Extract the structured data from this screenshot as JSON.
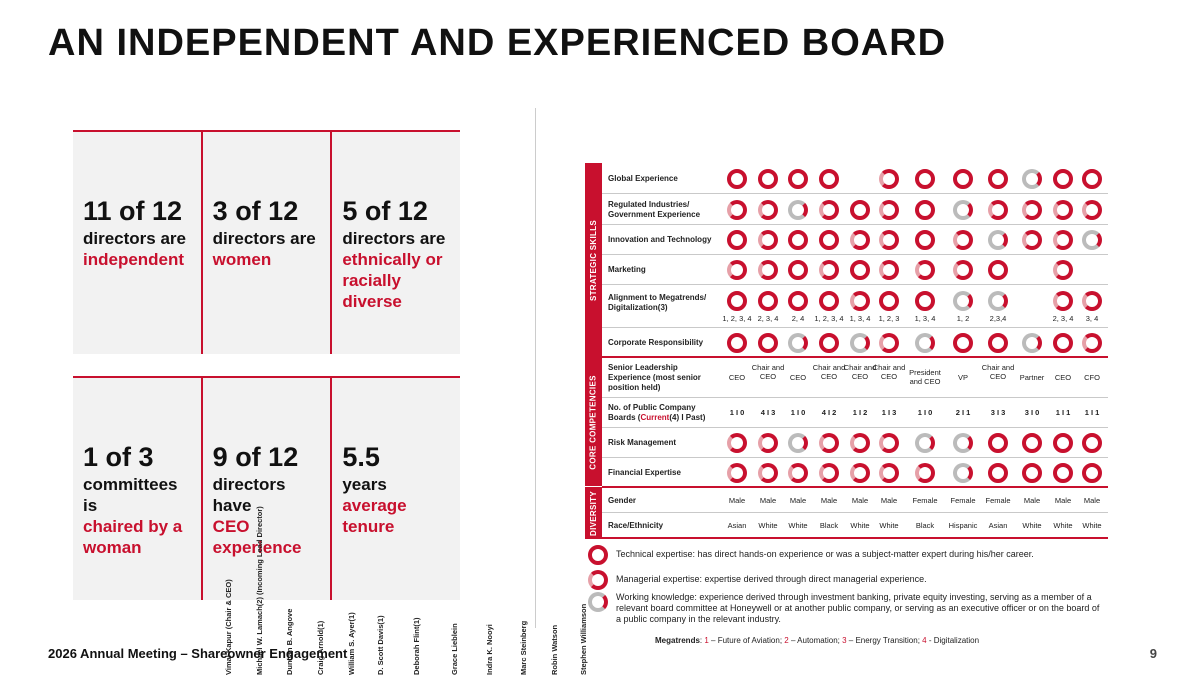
{
  "title": "AN INDEPENDENT AND EXPERIENCED BOARD",
  "cards_top": [
    {
      "big": "11 of 12",
      "text": "directors are",
      "highlight": "independent"
    },
    {
      "big": "3 of 12",
      "text": "directors are",
      "highlight": "women"
    },
    {
      "big": "5 of 12",
      "text": "directors are",
      "highlight": "ethnically or racially diverse"
    }
  ],
  "cards_bottom": [
    {
      "big": "1 of 3",
      "text": "committees is",
      "highlight": "chaired by a woman"
    },
    {
      "big": "9 of 12",
      "text": "directors have",
      "highlight": "CEO experience"
    },
    {
      "big": "5.5",
      "text": "years",
      "highlight": "average tenure"
    }
  ],
  "directors": [
    "Vimal Kapur (Chair & CEO)",
    "Michael W. Lamach(2) (Incoming Lead Director)",
    "Duncan B. Angove",
    "Craig Arnold(1)",
    "William S. Ayer(1)",
    "D. Scott Davis(1)",
    "Deborah Flint(1)",
    "Grace Lieblein",
    "Indra K. Nooyi",
    "Marc Steinberg",
    "Robin Watson",
    "Stephen Williamson"
  ],
  "sections": {
    "strategic": "STRATEGIC SKILLS",
    "core": "CORE COMPETENCIES",
    "diversity": "DIVERSITY"
  },
  "rows": {
    "global": "Global Experience",
    "regulated": "Regulated Industries/ Government Experience",
    "innovation": "Innovation and Technology",
    "marketing": "Marketing",
    "megatrends": "Alignment to Megatrends/ Digitalization(3)",
    "csr": "Corporate Responsibility",
    "senior": "Senior Leadership Experience (most senior position held)",
    "boards_a": "No. of Public Company Boards (",
    "boards_current": "Current",
    "boards_b": "(4) I Past)",
    "risk": "Risk Management",
    "financial": "Financial Expertise",
    "gender": "Gender",
    "race": "Race/Ethnicity"
  },
  "megatrend_codes": [
    "1, 2, 3, 4",
    "2, 3, 4",
    "2, 4",
    "1, 2, 3, 4",
    "1, 3, 4",
    "1, 2, 3",
    "1, 3, 4",
    "1, 2",
    "2,3,4",
    "",
    "2, 3, 4",
    "3, 4"
  ],
  "senior_positions": [
    "CEO",
    "Chair and CEO",
    "CEO",
    "Chair and CEO",
    "Chair and CEO",
    "Chair and CEO",
    "President and CEO",
    "VP",
    "Chair and CEO",
    "Partner",
    "CEO",
    "CFO"
  ],
  "boards": [
    "1 I 0",
    "4 I 3",
    "1 I 0",
    "4 I 2",
    "1 I 2",
    "1 I 3",
    "1 I 0",
    "2 I 1",
    "3 I 3",
    "3 I 0",
    "1 I 1",
    "1 I 1"
  ],
  "genders": [
    "Male",
    "Male",
    "Male",
    "Male",
    "Male",
    "Male",
    "Female",
    "Female",
    "Female",
    "Male",
    "Male",
    "Male"
  ],
  "races": [
    "Asian",
    "White",
    "White",
    "Black",
    "White",
    "White",
    "Black",
    "Hispanic",
    "Asian",
    "White",
    "White",
    "White"
  ],
  "expertise_matrix": {
    "global": [
      "full",
      "full",
      "full",
      "full",
      "",
      "mgr",
      "full",
      "full",
      "full",
      "wk",
      "full",
      "full"
    ],
    "regulated": [
      "mgr",
      "mgr",
      "wk",
      "mgr",
      "full",
      "mgr",
      "full",
      "wk",
      "mgr",
      "mgr",
      "mgr",
      "mgr"
    ],
    "innovation": [
      "full",
      "mgr",
      "full",
      "full",
      "mgr",
      "mgr",
      "full",
      "mgr",
      "wk",
      "mgr",
      "mgr",
      "wk"
    ],
    "marketing": [
      "mgr",
      "mgr",
      "full",
      "mgr",
      "full",
      "mgr",
      "mgr",
      "mgr",
      "full",
      "",
      "mgr",
      ""
    ],
    "megatrends": [
      "full",
      "full",
      "full",
      "full",
      "mgr",
      "full",
      "full",
      "wk",
      "wk",
      "",
      "mgr",
      "mgr"
    ],
    "csr": [
      "full",
      "full",
      "wk",
      "full",
      "wk",
      "mgr",
      "wk",
      "full",
      "full",
      "wk",
      "full",
      "mgr"
    ],
    "risk": [
      "mgr",
      "mgr",
      "wk",
      "mgr",
      "mgr",
      "mgr",
      "wk",
      "wk",
      "full",
      "full",
      "full",
      "full"
    ],
    "financial": [
      "mgr",
      "mgr",
      "mgr",
      "mgr",
      "mgr",
      "mgr",
      "mgr",
      "wk",
      "full",
      "full",
      "full",
      "full"
    ]
  },
  "legend": [
    {
      "type": "full",
      "text": "Technical expertise: has direct hands-on experience or was a subject-matter expert during his/her career."
    },
    {
      "type": "mgr",
      "text": "Managerial expertise: expertise derived through direct managerial experience."
    },
    {
      "type": "wk",
      "text": "Working knowledge: experience derived through investment banking, private equity investing, serving as a member of a relevant board committee at Honeywell or at another public company, or serving as an executive officer or on the board of a public company in the relevant industry."
    }
  ],
  "megatrends_note": {
    "label": "Megatrends",
    "items": [
      {
        "num": "1",
        "text": " – Future of Aviation; "
      },
      {
        "num": "2",
        "text": " – Automation; "
      },
      {
        "num": "3",
        "text": " – Energy Transition; "
      },
      {
        "num": "4",
        "text": " - Digitalization"
      }
    ]
  },
  "footer": "2026 Annual Meeting – Shareowner Engagement",
  "page_number": "9",
  "colors": {
    "accent": "#c8102e",
    "card_bg": "#f2f2f2"
  }
}
